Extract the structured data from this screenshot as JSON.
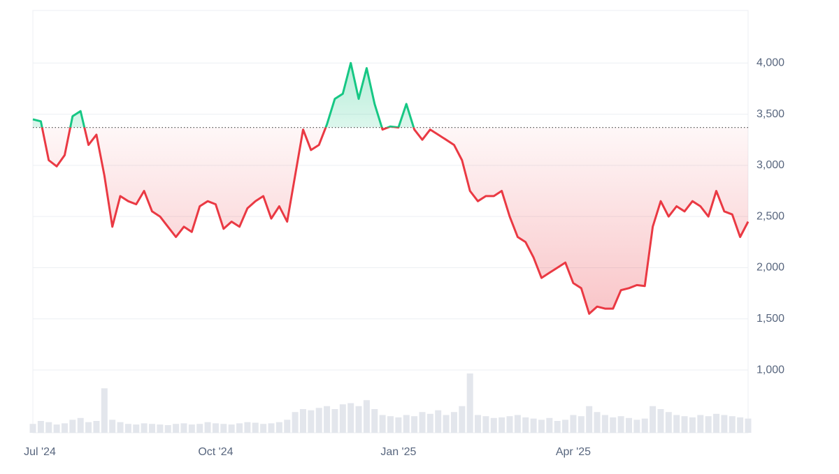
{
  "chart_data": {
    "type": "line",
    "categories": [
      "Jul '24",
      null,
      null,
      null,
      null,
      null,
      null,
      null,
      null,
      null,
      null,
      null,
      null,
      null,
      null,
      null,
      null,
      null,
      null,
      null,
      null,
      null,
      null,
      "Oct '24",
      null,
      null,
      null,
      null,
      null,
      null,
      null,
      null,
      null,
      null,
      null,
      null,
      null,
      null,
      null,
      null,
      null,
      null,
      null,
      null,
      null,
      null,
      "Jan '25",
      null,
      null,
      null,
      null,
      null,
      null,
      null,
      null,
      null,
      null,
      null,
      null,
      null,
      null,
      null,
      null,
      null,
      null,
      null,
      null,
      null,
      "Apr '25",
      null,
      null,
      null,
      null,
      null,
      null,
      null,
      null,
      null,
      null,
      null,
      null,
      null,
      null,
      null,
      null,
      null,
      null,
      null,
      null,
      null,
      null
    ],
    "values": [
      3450,
      3430,
      3050,
      2990,
      3100,
      3480,
      3530,
      3200,
      3300,
      2900,
      2400,
      2700,
      2650,
      2620,
      2750,
      2550,
      2500,
      2400,
      2300,
      2400,
      2350,
      2600,
      2650,
      2620,
      2380,
      2450,
      2400,
      2580,
      2650,
      2700,
      2480,
      2600,
      2450,
      2900,
      3350,
      3150,
      3200,
      3400,
      3650,
      3700,
      4000,
      3650,
      3950,
      3600,
      3350,
      3380,
      3370,
      3600,
      3350,
      3250,
      3350,
      3300,
      3250,
      3200,
      3050,
      2750,
      2650,
      2700,
      2700,
      2750,
      2500,
      2300,
      2250,
      2100,
      1900,
      1950,
      2000,
      2050,
      1850,
      1800,
      1550,
      1620,
      1600,
      1600,
      1780,
      1800,
      1830,
      1820,
      2400,
      2650,
      2500,
      2600,
      2550,
      2650,
      2600,
      2500,
      2750,
      2550,
      2520,
      2300,
      2450
    ],
    "volume": [
      15,
      20,
      18,
      14,
      16,
      22,
      25,
      18,
      20,
      75,
      22,
      18,
      15,
      14,
      16,
      15,
      14,
      13,
      15,
      16,
      14,
      15,
      18,
      16,
      15,
      14,
      16,
      18,
      17,
      15,
      16,
      18,
      22,
      35,
      40,
      38,
      42,
      45,
      40,
      48,
      50,
      45,
      55,
      40,
      30,
      28,
      26,
      30,
      28,
      35,
      32,
      38,
      30,
      35,
      45,
      100,
      30,
      28,
      25,
      26,
      28,
      30,
      26,
      24,
      22,
      25,
      20,
      22,
      30,
      28,
      45,
      35,
      30,
      26,
      28,
      25,
      22,
      24,
      45,
      40,
      35,
      30,
      28,
      26,
      30,
      28,
      32,
      30,
      28,
      26,
      24
    ],
    "baseline": 3370,
    "up_color": "#16c784",
    "down_color": "#ea3943",
    "volume_color": "#e3e6ec",
    "ylim": [
      400,
      4500
    ],
    "yticks": [
      {
        "value": 1000,
        "label": "1,000"
      },
      {
        "value": 1500,
        "label": "1,500"
      },
      {
        "value": 2000,
        "label": "2,000"
      },
      {
        "value": 2500,
        "label": "2,500"
      },
      {
        "value": 3000,
        "label": "3,000"
      },
      {
        "value": 3500,
        "label": "3,500"
      },
      {
        "value": 4000,
        "label": "4,000"
      }
    ],
    "grid": true
  }
}
